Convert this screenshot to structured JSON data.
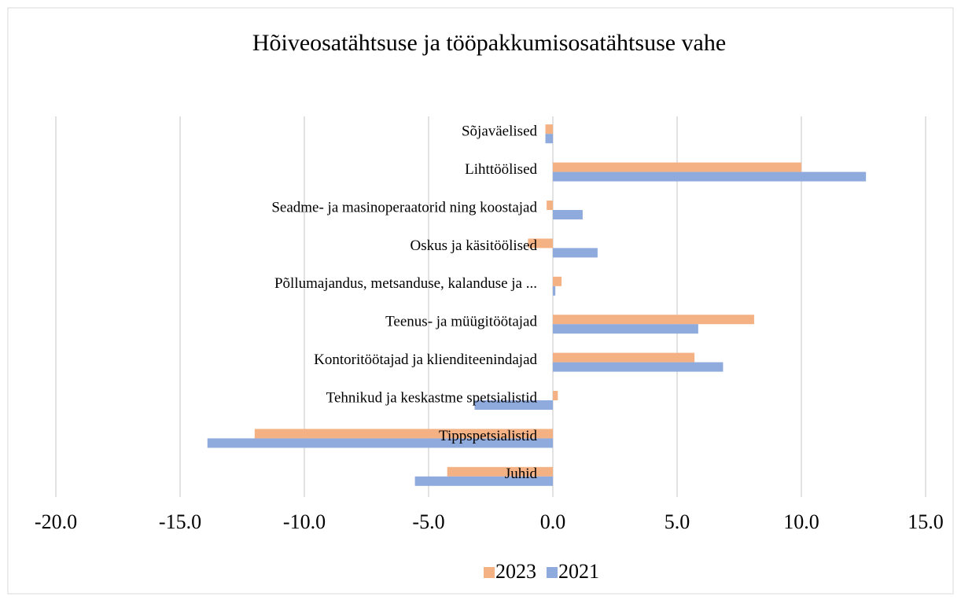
{
  "chart_data": {
    "type": "hbar",
    "title": "Hõiveosatähtsuse ja tööpakkumisosatähtsuse vahe",
    "categories": [
      "Sõjaväelised",
      "Lihttöölised",
      "Seadme- ja masinoperaatorid ning koostajad",
      "Oskus ja käsitöölised",
      "Põllumajandus, metsanduse, kalanduse ja ...",
      "Teenus- ja müügitöötajad",
      "Kontoritöötajad ja klienditeenindajad",
      "Tehnikud ja keskastme spetsialistid",
      "Tippspetsialistid",
      "Juhid"
    ],
    "series": [
      {
        "name": "2023",
        "color": "#f4b183",
        "values": [
          -0.3,
          10.0,
          -0.25,
          -1.0,
          0.35,
          8.1,
          5.7,
          0.2,
          -12.0,
          -4.25
        ]
      },
      {
        "name": "2021",
        "color": "#8faadc",
        "values": [
          -0.3,
          12.6,
          1.2,
          1.8,
          0.1,
          5.85,
          6.85,
          -3.15,
          -13.9,
          -5.55
        ]
      }
    ],
    "xlim": [
      -20,
      15
    ],
    "xticks": [
      {
        "value": -20,
        "label": "-20.0"
      },
      {
        "value": -15,
        "label": "-15.0"
      },
      {
        "value": -10,
        "label": "-10.0"
      },
      {
        "value": -5,
        "label": "-5.0"
      },
      {
        "value": 0,
        "label": "0.0"
      },
      {
        "value": 5,
        "label": "5.0"
      },
      {
        "value": 10,
        "label": "10.0"
      },
      {
        "value": 15,
        "label": "15.0"
      }
    ],
    "grid": true,
    "legend": "bottom"
  }
}
